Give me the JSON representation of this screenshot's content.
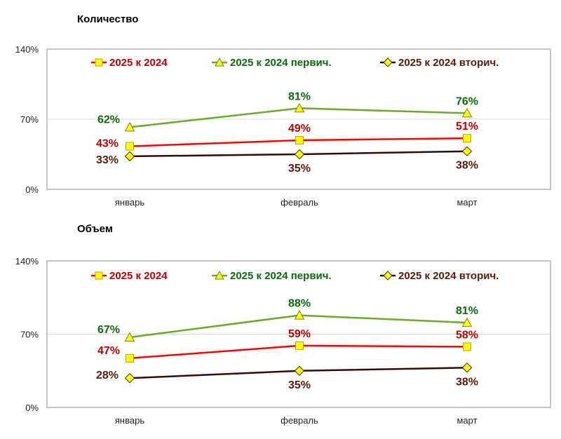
{
  "chart_data": [
    {
      "type": "line",
      "title": "Количество",
      "categories": [
        "январь",
        "февраль",
        "март"
      ],
      "ylim": [
        0,
        140
      ],
      "yticks": [
        "0%",
        "70%",
        "140%"
      ],
      "ytick_values": [
        0,
        70,
        140
      ],
      "grid": true,
      "legend_position": "top",
      "series": [
        {
          "name": "2025 к 2024",
          "values": [
            43,
            49,
            51
          ],
          "labels": [
            "43%",
            "49%",
            "51%"
          ],
          "color": "#ff0000",
          "label_color": "#c00000",
          "marker": "square",
          "marker_fill": "#ffff00",
          "label_pos": [
            "left",
            "top",
            "top"
          ]
        },
        {
          "name": "2025 к 2024 первич.",
          "values": [
            62,
            81,
            76
          ],
          "labels": [
            "62%",
            "81%",
            "76%"
          ],
          "color": "#6aaa2a",
          "label_color": "#0a6b0a",
          "marker": "triangle",
          "marker_fill": "#ffff00",
          "label_pos": [
            "top-left",
            "top",
            "top"
          ]
        },
        {
          "name": "2025 к 2024 вторич.",
          "values": [
            33,
            35,
            38
          ],
          "labels": [
            "33%",
            "35%",
            "38%"
          ],
          "color": "#3a0808",
          "label_color": "#5a1a0a",
          "marker": "diamond",
          "marker_fill": "#ffff00",
          "label_pos": [
            "bottom-left",
            "bottom",
            "bottom"
          ]
        }
      ]
    },
    {
      "type": "line",
      "title": "Объем",
      "categories": [
        "январь",
        "февраль",
        "март"
      ],
      "ylim": [
        0,
        140
      ],
      "yticks": [
        "0%",
        "70%",
        "140%"
      ],
      "ytick_values": [
        0,
        70,
        140
      ],
      "grid": true,
      "legend_position": "top",
      "series": [
        {
          "name": "2025 к 2024",
          "values": [
            47,
            59,
            58
          ],
          "labels": [
            "47%",
            "59%",
            "58%"
          ],
          "color": "#ff0000",
          "label_color": "#c00000",
          "marker": "square",
          "marker_fill": "#ffff00",
          "label_pos": [
            "top-left",
            "top",
            "top"
          ]
        },
        {
          "name": "2025 к 2024 первич.",
          "values": [
            67,
            88,
            81
          ],
          "labels": [
            "67%",
            "88%",
            "81%"
          ],
          "color": "#6aaa2a",
          "label_color": "#0a6b0a",
          "marker": "triangle",
          "marker_fill": "#ffff00",
          "label_pos": [
            "top-left",
            "top",
            "top"
          ]
        },
        {
          "name": "2025 к 2024 вторич.",
          "values": [
            28,
            35,
            38
          ],
          "labels": [
            "28%",
            "35%",
            "38%"
          ],
          "color": "#3a0808",
          "label_color": "#5a1a0a",
          "marker": "diamond",
          "marker_fill": "#ffff00",
          "label_pos": [
            "left",
            "bottom",
            "bottom"
          ]
        }
      ]
    }
  ]
}
